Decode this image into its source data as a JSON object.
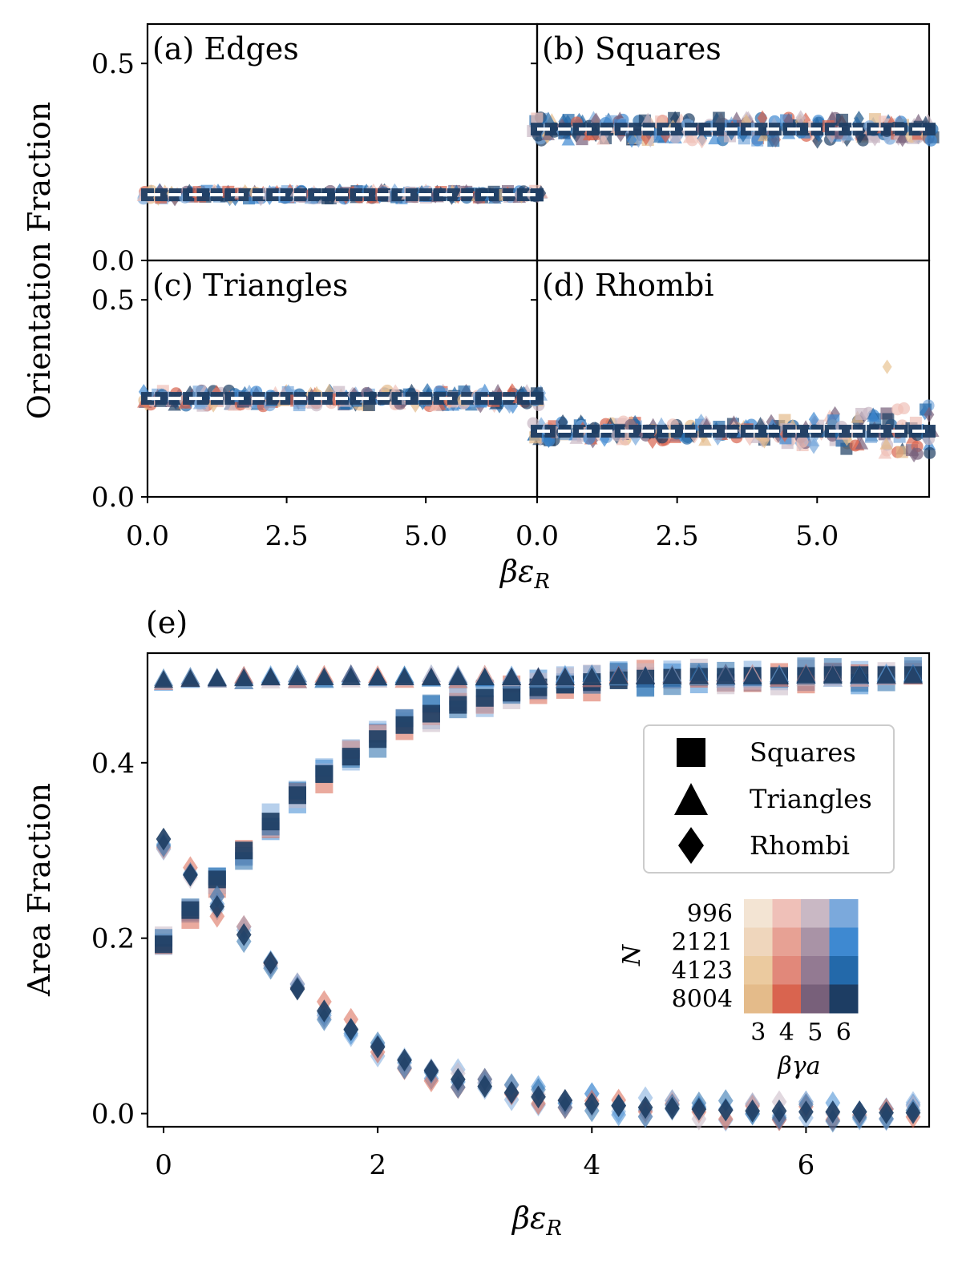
{
  "chart_data": [
    {
      "type": "scatter",
      "panel": "a",
      "title": "(a) Edges",
      "ylabel": "Orientation Fraction",
      "xlabel": "βε_R",
      "xlim": [
        0,
        7
      ],
      "ylim": [
        0,
        0.6
      ],
      "yticks": [
        "0.0",
        "0.5"
      ],
      "xticks": [
        "0.0",
        "2.5",
        "5.0"
      ],
      "x": [
        0.0,
        0.25,
        0.5,
        0.75,
        1.0,
        1.25,
        1.5,
        1.75,
        2.0,
        2.25,
        2.5,
        2.75,
        3.0,
        3.25,
        3.5,
        3.75,
        4.0,
        4.25,
        4.5,
        4.75,
        5.0,
        5.25,
        5.5,
        5.75,
        6.0,
        6.25,
        6.5,
        6.75,
        7.0
      ],
      "series_mean": 0.1667,
      "spread": 0.02,
      "reference_line": 0.1667
    },
    {
      "type": "scatter",
      "panel": "b",
      "title": "(b) Squares",
      "xlim": [
        0,
        7
      ],
      "ylim": [
        0,
        0.6
      ],
      "xticks": [
        "0.0",
        "2.5",
        "5.0"
      ],
      "x": [
        0.0,
        0.25,
        0.5,
        0.75,
        1.0,
        1.25,
        1.5,
        1.75,
        2.0,
        2.25,
        2.5,
        2.75,
        3.0,
        3.25,
        3.5,
        3.75,
        4.0,
        4.25,
        4.5,
        4.75,
        5.0,
        5.25,
        5.5,
        5.75,
        6.0,
        6.25,
        6.5,
        6.75,
        7.0
      ],
      "series_mean": 0.3333,
      "spread": 0.06,
      "reference_line": 0.3333
    },
    {
      "type": "scatter",
      "panel": "c",
      "title": "(c) Triangles",
      "ylabel": "Orientation Fraction",
      "xlim": [
        0,
        7
      ],
      "ylim": [
        0,
        0.6
      ],
      "yticks": [
        "0.0",
        "0.5"
      ],
      "xticks": [
        "0.0",
        "2.5",
        "5.0"
      ],
      "x": [
        0.0,
        0.25,
        0.5,
        0.75,
        1.0,
        1.25,
        1.5,
        1.75,
        2.0,
        2.25,
        2.5,
        2.75,
        3.0,
        3.25,
        3.5,
        3.75,
        4.0,
        4.25,
        4.5,
        4.75,
        5.0,
        5.25,
        5.5,
        5.75,
        6.0,
        6.25,
        6.5,
        6.75,
        7.0
      ],
      "series_mean": 0.25,
      "spread": 0.04,
      "reference_line": 0.25
    },
    {
      "type": "scatter",
      "panel": "d",
      "title": "(d) Rhombi",
      "xlim": [
        0,
        7
      ],
      "ylim": [
        0,
        0.6
      ],
      "xticks": [
        "0.0",
        "2.5",
        "5.0"
      ],
      "x": [
        0.0,
        0.25,
        0.5,
        0.75,
        1.0,
        1.25,
        1.5,
        1.75,
        2.0,
        2.25,
        2.5,
        2.75,
        3.0,
        3.25,
        3.5,
        3.75,
        4.0,
        4.25,
        4.5,
        4.75,
        5.0,
        5.25,
        5.5,
        5.75,
        6.0,
        6.25,
        6.5,
        6.75,
        7.0
      ],
      "series_mean": 0.1667,
      "spread": 0.05,
      "reference_line": 0.1667,
      "outlier": {
        "x": 6.25,
        "y": 0.33
      }
    },
    {
      "type": "scatter",
      "panel": "e",
      "title": "(e)",
      "xlabel": "βε_R",
      "ylabel": "Area Fraction",
      "xlim": [
        -0.15,
        7.15
      ],
      "ylim": [
        -0.015,
        0.525
      ],
      "xticks": [
        "0",
        "2",
        "4",
        "6"
      ],
      "yticks": [
        "0.0",
        "0.2",
        "0.4"
      ],
      "x": [
        0.0,
        0.25,
        0.5,
        0.75,
        1.0,
        1.25,
        1.5,
        1.75,
        2.0,
        2.25,
        2.5,
        2.75,
        3.0,
        3.25,
        3.5,
        3.75,
        4.0,
        4.25,
        4.5,
        4.75,
        5.0,
        5.25,
        5.5,
        5.75,
        6.0,
        6.25,
        6.5,
        6.75,
        7.0
      ],
      "series": [
        {
          "name": "Squares",
          "marker": "square",
          "values": [
            0.193,
            0.232,
            0.267,
            0.3,
            0.333,
            0.363,
            0.387,
            0.407,
            0.427,
            0.443,
            0.456,
            0.466,
            0.474,
            0.48,
            0.486,
            0.489,
            0.492,
            0.494,
            0.496,
            0.497,
            0.498,
            0.498,
            0.499,
            0.499,
            0.499,
            0.5,
            0.5,
            0.5,
            0.5
          ]
        },
        {
          "name": "Triangles",
          "marker": "triangle",
          "values": [
            0.494,
            0.495,
            0.496,
            0.496,
            0.497,
            0.497,
            0.497,
            0.497,
            0.497,
            0.497,
            0.497,
            0.497,
            0.497,
            0.497,
            0.497,
            0.497,
            0.497,
            0.498,
            0.498,
            0.498,
            0.498,
            0.498,
            0.498,
            0.498,
            0.499,
            0.499,
            0.499,
            0.499,
            0.499
          ]
        },
        {
          "name": "Rhombi",
          "marker": "diamond",
          "values": [
            0.313,
            0.272,
            0.236,
            0.204,
            0.172,
            0.142,
            0.117,
            0.096,
            0.076,
            0.061,
            0.049,
            0.039,
            0.031,
            0.024,
            0.019,
            0.015,
            0.011,
            0.009,
            0.007,
            0.006,
            0.005,
            0.004,
            0.003,
            0.003,
            0.002,
            0.002,
            0.002,
            0.001,
            0.001
          ]
        }
      ],
      "legend": {
        "location": "right",
        "entries": [
          "Squares",
          "Triangles",
          "Rhombi"
        ]
      },
      "colorgrid": {
        "ylabel": "N",
        "xlabel": "βγa",
        "rows": [
          "996",
          "2121",
          "4123",
          "8004"
        ],
        "cols": [
          "3",
          "4",
          "5",
          "6"
        ],
        "colors": [
          [
            "#f3e4d3",
            "#efc0b8",
            "#c9b8c4",
            "#7ba9dc"
          ],
          [
            "#efd6bc",
            "#e7a194",
            "#a993a6",
            "#3e89d1"
          ],
          [
            "#ebca9f",
            "#e1887a",
            "#937a92",
            "#2369aa"
          ],
          [
            "#e4bb8a",
            "#d9644f",
            "#78607a",
            "#1d3d63"
          ]
        ]
      }
    }
  ],
  "colors": {
    "palette": [
      "#e4bb8a",
      "#efc0b8",
      "#d9644f",
      "#c9b8c4",
      "#78607a",
      "#7ba9dc",
      "#3e89d1",
      "#2369aa",
      "#1d3d63"
    ],
    "dark": "#1d3d63",
    "reference_line": "#ffffff"
  }
}
